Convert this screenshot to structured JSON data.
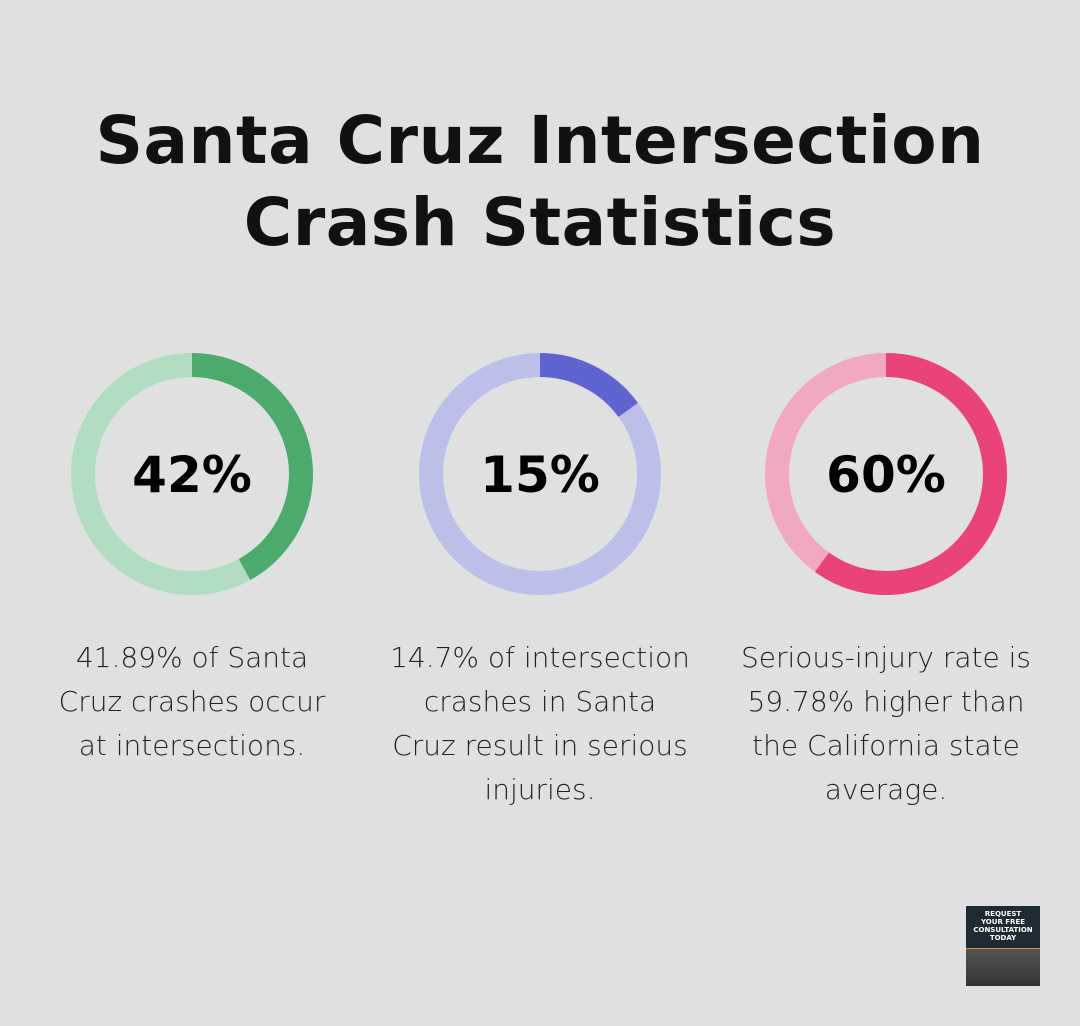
{
  "title_lines": [
    "Santa Cruz Intersection",
    "Crash Statistics"
  ],
  "chart_data": [
    {
      "type": "pie",
      "subtype": "donut",
      "label": "42%",
      "value": 42,
      "description": "41.89% of Santa Cruz crashes occur at intersections.",
      "colors": {
        "fill": "#4caa6c",
        "track": "#b0dcc0"
      }
    },
    {
      "type": "pie",
      "subtype": "donut",
      "label": "15%",
      "value": 15,
      "description": "14.7% of intersection crashes in Santa Cruz result in serious injuries.",
      "colors": {
        "fill": "#6064d0",
        "track": "#bcbfe9"
      }
    },
    {
      "type": "pie",
      "subtype": "donut",
      "label": "60%",
      "value": 60,
      "description": "Serious-injury rate is 59.78% higher than the California state average.",
      "colors": {
        "fill": "#e84478",
        "track": "#f2a8c0"
      }
    }
  ],
  "cta": {
    "lines": [
      "REQUEST",
      "YOUR FREE",
      "CONSULTATION",
      "TODAY"
    ]
  }
}
